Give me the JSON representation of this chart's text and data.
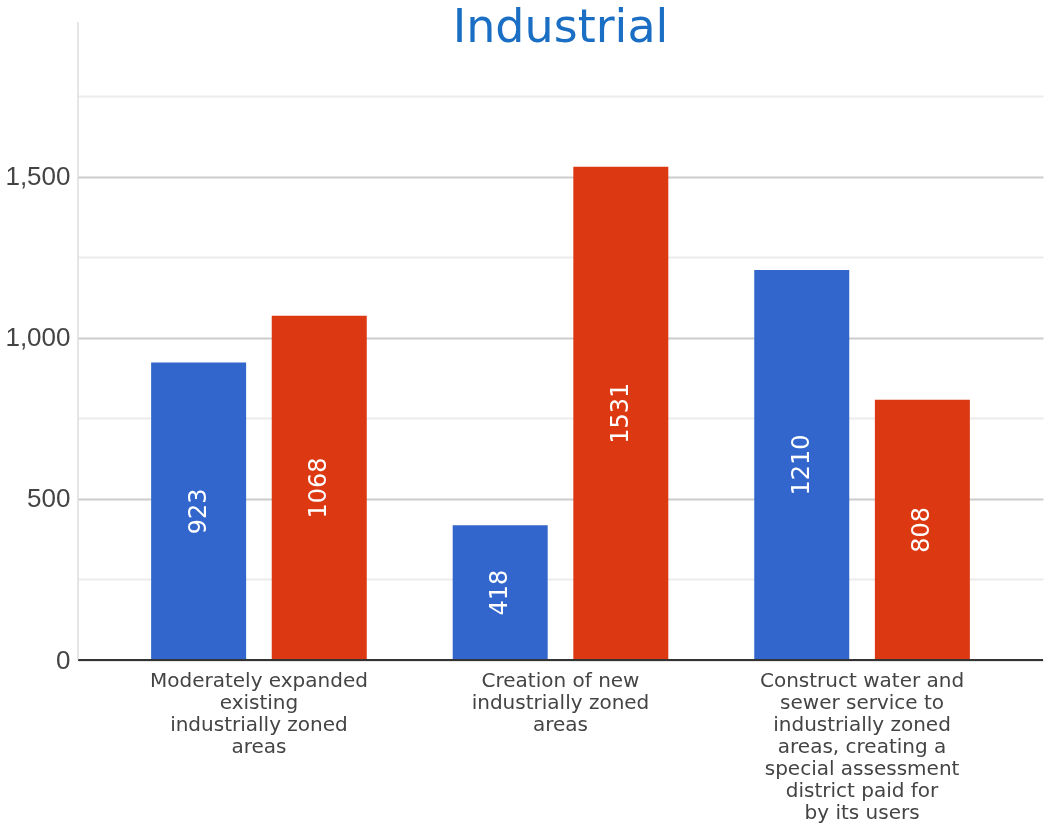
{
  "chart_data": {
    "type": "bar",
    "title": "Industrial",
    "categories": [
      "Moderately expanded existing industrially zoned areas",
      "Creation of new industrially zoned areas",
      "Construct water and sewer service to industrially zoned areas, creating a special assessment district paid for by its users"
    ],
    "series": [
      {
        "color": "#3366cc",
        "values": [
          923,
          418,
          1210
        ]
      },
      {
        "color": "#dc3912",
        "values": [
          1068,
          1531,
          808
        ]
      }
    ],
    "ylim": [
      0,
      1980
    ],
    "yticks": [
      0,
      {
        "value": 250,
        "label": null
      },
      500,
      {
        "value": 750,
        "label": null
      },
      {
        "value": 1000,
        "label": "1,000"
      },
      {
        "value": 1250,
        "label": null
      },
      {
        "value": 1500,
        "label": "1,500"
      },
      {
        "value": 1750,
        "label": null
      }
    ],
    "grid": "y",
    "data_labels": true,
    "legend": false
  }
}
